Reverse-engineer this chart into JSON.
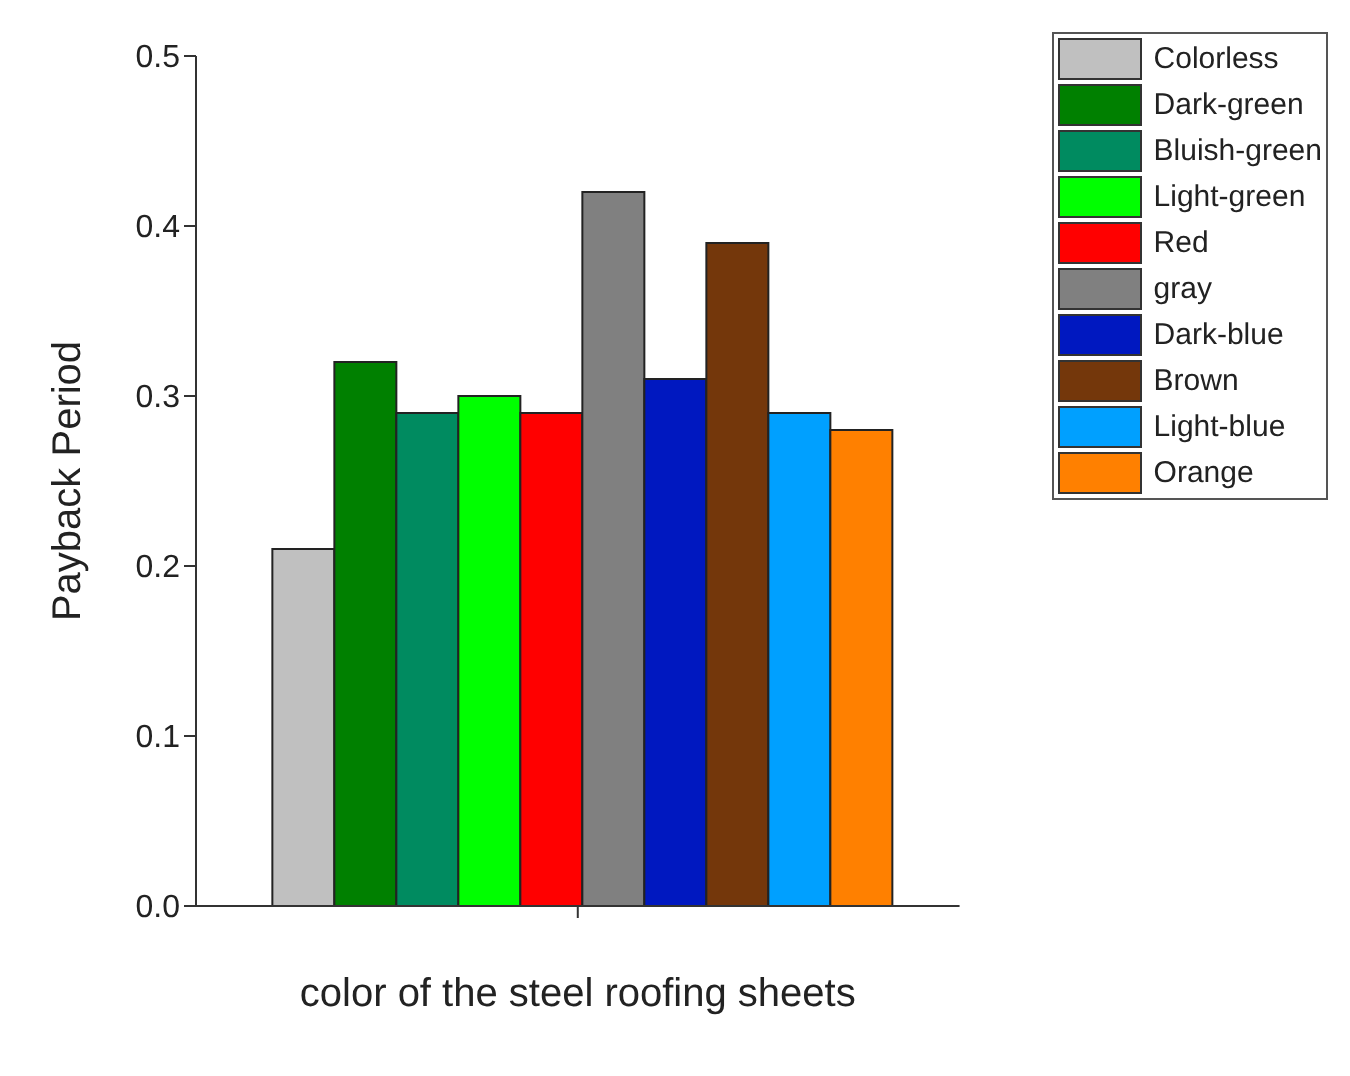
{
  "chart_data": {
    "type": "bar",
    "xlabel": "color of the steel roofing sheets",
    "ylabel": "Payback Period",
    "categories": [
      null
    ],
    "series": [
      {
        "name": "Colorless",
        "color": "#c0c0c0",
        "values": [
          0.21
        ]
      },
      {
        "name": "Dark-green",
        "color": "#008000",
        "values": [
          0.32
        ]
      },
      {
        "name": "Bluish-green",
        "color": "#008b60",
        "values": [
          0.29
        ]
      },
      {
        "name": "Light-green",
        "color": "#00ff00",
        "values": [
          0.3
        ]
      },
      {
        "name": "Red",
        "color": "#ff0000",
        "values": [
          0.29
        ]
      },
      {
        "name": "gray",
        "color": "#808080",
        "values": [
          0.42
        ]
      },
      {
        "name": "Dark-blue",
        "color": "#0018c0",
        "values": [
          0.31
        ]
      },
      {
        "name": "Brown",
        "color": "#74370b",
        "values": [
          0.39
        ]
      },
      {
        "name": "Light-blue",
        "color": "#00a0ff",
        "values": [
          0.29
        ]
      },
      {
        "name": "Orange",
        "color": "#ff8000",
        "values": [
          0.28
        ]
      }
    ],
    "ylim": [
      0,
      0.5
    ],
    "yticks": [
      {
        "value": 0,
        "label": "0.0"
      },
      {
        "value": 0.1,
        "label": "0.1"
      },
      {
        "value": 0.2,
        "label": "0.2"
      },
      {
        "value": 0.3,
        "label": "0.3"
      },
      {
        "value": 0.4,
        "label": "0.4"
      },
      {
        "value": 0.5,
        "label": "0.5"
      }
    ],
    "grid": false,
    "legend": "top right"
  }
}
